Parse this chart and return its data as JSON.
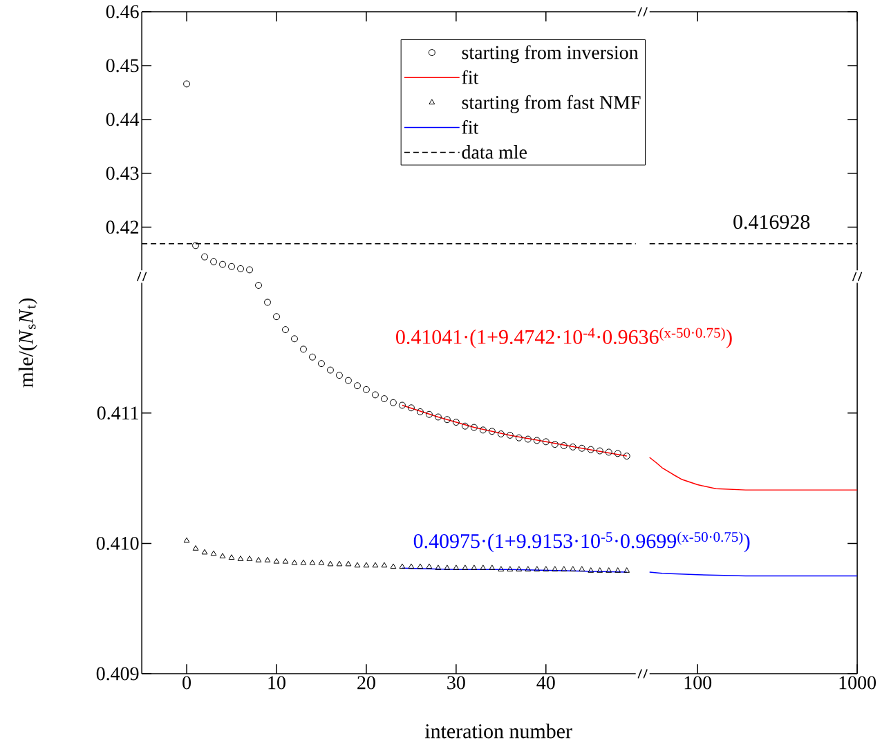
{
  "chart_data": [
    {
      "type": "scatter",
      "xlim": [
        -5,
        50
      ],
      "ylim": [
        0.412,
        0.46
      ],
      "xticks": [
        0,
        10,
        20,
        30,
        40
      ],
      "yticks": [
        0.42,
        0.43,
        0.44,
        0.45,
        0.46
      ],
      "tick_labels": "y",
      "legend": "right",
      "series": [
        {
          "color": "#000000",
          "marker": "circle",
          "x": [
            0,
            1,
            2,
            3,
            4,
            5,
            6,
            7
          ],
          "values": [
            0.4466,
            0.4166,
            0.4145,
            0.4136,
            0.4131,
            0.4127,
            0.4123,
            0.4121
          ]
        },
        {
          "name": "data mle",
          "type": "line",
          "color": "#000000",
          "line_style": "dashed",
          "marker": "none",
          "x": [
            -5,
            50
          ],
          "values": [
            0.416928,
            0.416928
          ]
        }
      ]
    },
    {
      "type": "line",
      "xlim": [
        50,
        1000
      ],
      "ylim": [
        0.412,
        0.46
      ],
      "xticks": [
        100,
        1000
      ],
      "yticks": [
        0.42,
        0.43,
        0.44,
        0.45,
        0.46
      ],
      "log": "x",
      "tick_labels": false,
      "series": [
        {
          "color": "#000000",
          "line_style": "dashed",
          "marker": "none",
          "x": [
            50,
            1000
          ],
          "values": [
            0.416928,
            0.416928
          ]
        }
      ],
      "annotations": [
        "0.416928"
      ]
    },
    {
      "type": "scatter",
      "xlim": [
        -5,
        50
      ],
      "ylim": [
        0.409,
        0.412
      ],
      "xticks": [
        0,
        10,
        20,
        30,
        40
      ],
      "yticks": [
        0.409,
        {
          "value": 0.41,
          "label": "0.410"
        },
        0.411
      ],
      "legend": "top",
      "xlabel": "interation number",
      "ylabel": "mle/(*N*$_{s}$*N*$_{t}$)",
      "series": [
        {
          "name": "starting from inversion",
          "color": "#000000",
          "marker": "circle",
          "x": [
            8,
            9,
            10,
            11,
            12,
            13,
            14,
            15,
            16,
            17,
            18,
            19,
            20,
            21,
            22,
            23,
            24,
            25,
            26,
            27,
            28,
            29,
            30,
            31,
            32,
            33,
            34,
            35,
            36,
            37,
            38,
            39,
            40,
            41,
            42,
            43,
            44,
            45,
            46,
            47,
            48,
            49
          ],
          "values": [
            0.41198,
            0.41185,
            0.41174,
            0.41164,
            0.41157,
            0.41149,
            0.41143,
            0.41138,
            0.41133,
            0.41129,
            0.41125,
            0.41121,
            0.41118,
            0.41114,
            0.41111,
            0.41108,
            0.41106,
            0.41104,
            0.41101,
            0.41099,
            0.41097,
            0.41095,
            0.41093,
            0.4109,
            0.41089,
            0.41087,
            0.41086,
            0.41084,
            0.41083,
            0.41081,
            0.4108,
            0.41079,
            0.41078,
            0.41076,
            0.41075,
            0.41074,
            0.41073,
            0.41072,
            0.41071,
            0.4107,
            0.41069,
            0.41067
          ]
        },
        {
          "name": "fit",
          "type": "line",
          "color": "#ff0000",
          "marker": "none",
          "x": [
            24,
            28,
            32,
            36,
            40,
            44,
            49
          ],
          "values": [
            0.41106,
            0.41097,
            0.41089,
            0.41083,
            0.41078,
            0.41073,
            0.41067
          ]
        },
        {
          "name": "starting from fast NMF",
          "color": "#000000",
          "marker": "triangle",
          "x": [
            0,
            1,
            2,
            3,
            4,
            5,
            6,
            7,
            8,
            9,
            10,
            11,
            12,
            13,
            14,
            15,
            16,
            17,
            18,
            19,
            20,
            21,
            22,
            23,
            24,
            25,
            26,
            27,
            28,
            29,
            30,
            31,
            32,
            33,
            34,
            35,
            36,
            37,
            38,
            39,
            40,
            41,
            42,
            43,
            44,
            45,
            46,
            47,
            48,
            49
          ],
          "values": [
            0.41002,
            0.40996,
            0.40993,
            0.40992,
            0.4099,
            0.40989,
            0.40988,
            0.40988,
            0.40987,
            0.40987,
            0.40986,
            0.40986,
            0.40985,
            0.40985,
            0.40985,
            0.40985,
            0.40984,
            0.40984,
            0.40984,
            0.40983,
            0.40983,
            0.40983,
            0.40983,
            0.40982,
            0.40982,
            0.40982,
            0.40982,
            0.40982,
            0.40981,
            0.40981,
            0.40981,
            0.40981,
            0.40981,
            0.40981,
            0.40981,
            0.4098,
            0.4098,
            0.4098,
            0.4098,
            0.4098,
            0.4098,
            0.4098,
            0.4098,
            0.4098,
            0.4098,
            0.40979,
            0.40979,
            0.40979,
            0.40979,
            0.40979
          ]
        },
        {
          "name": "fit",
          "type": "line",
          "color": "#0000ff",
          "marker": "none",
          "x": [
            24,
            30,
            36,
            42,
            49
          ],
          "values": [
            0.40981,
            0.4098,
            0.4098,
            0.40979,
            0.40978
          ]
        }
      ],
      "annotations": [
        "0.41041·(1+9.4742·10$^{-4}$·0.9636$^{(x-50·0.75)}$)",
        "0.40975·(1+9.9153·10$^{-5}$·0.9699$^{(x-50·0.75)}$)"
      ]
    },
    {
      "type": "line",
      "xlim": [
        50,
        1000
      ],
      "ylim": [
        0.409,
        0.412
      ],
      "xticks": [
        100,
        1000
      ],
      "yticks": [
        0.409,
        0.41,
        0.411
      ],
      "log": "x",
      "tick_labels": "x",
      "series": [
        {
          "color": "#ff0000",
          "marker": "none",
          "x": [
            50,
            55,
            60,
            70,
            80,
            100,
            130,
            200,
            1000
          ],
          "values": [
            0.41066,
            0.41062,
            0.41058,
            0.41053,
            0.41049,
            0.41045,
            0.41042,
            0.41041,
            0.41041
          ]
        },
        {
          "color": "#0000ff",
          "marker": "none",
          "x": [
            50,
            60,
            100,
            200,
            1000
          ],
          "values": [
            0.40978,
            0.40977,
            0.40976,
            0.40975,
            0.40975
          ]
        }
      ]
    }
  ]
}
